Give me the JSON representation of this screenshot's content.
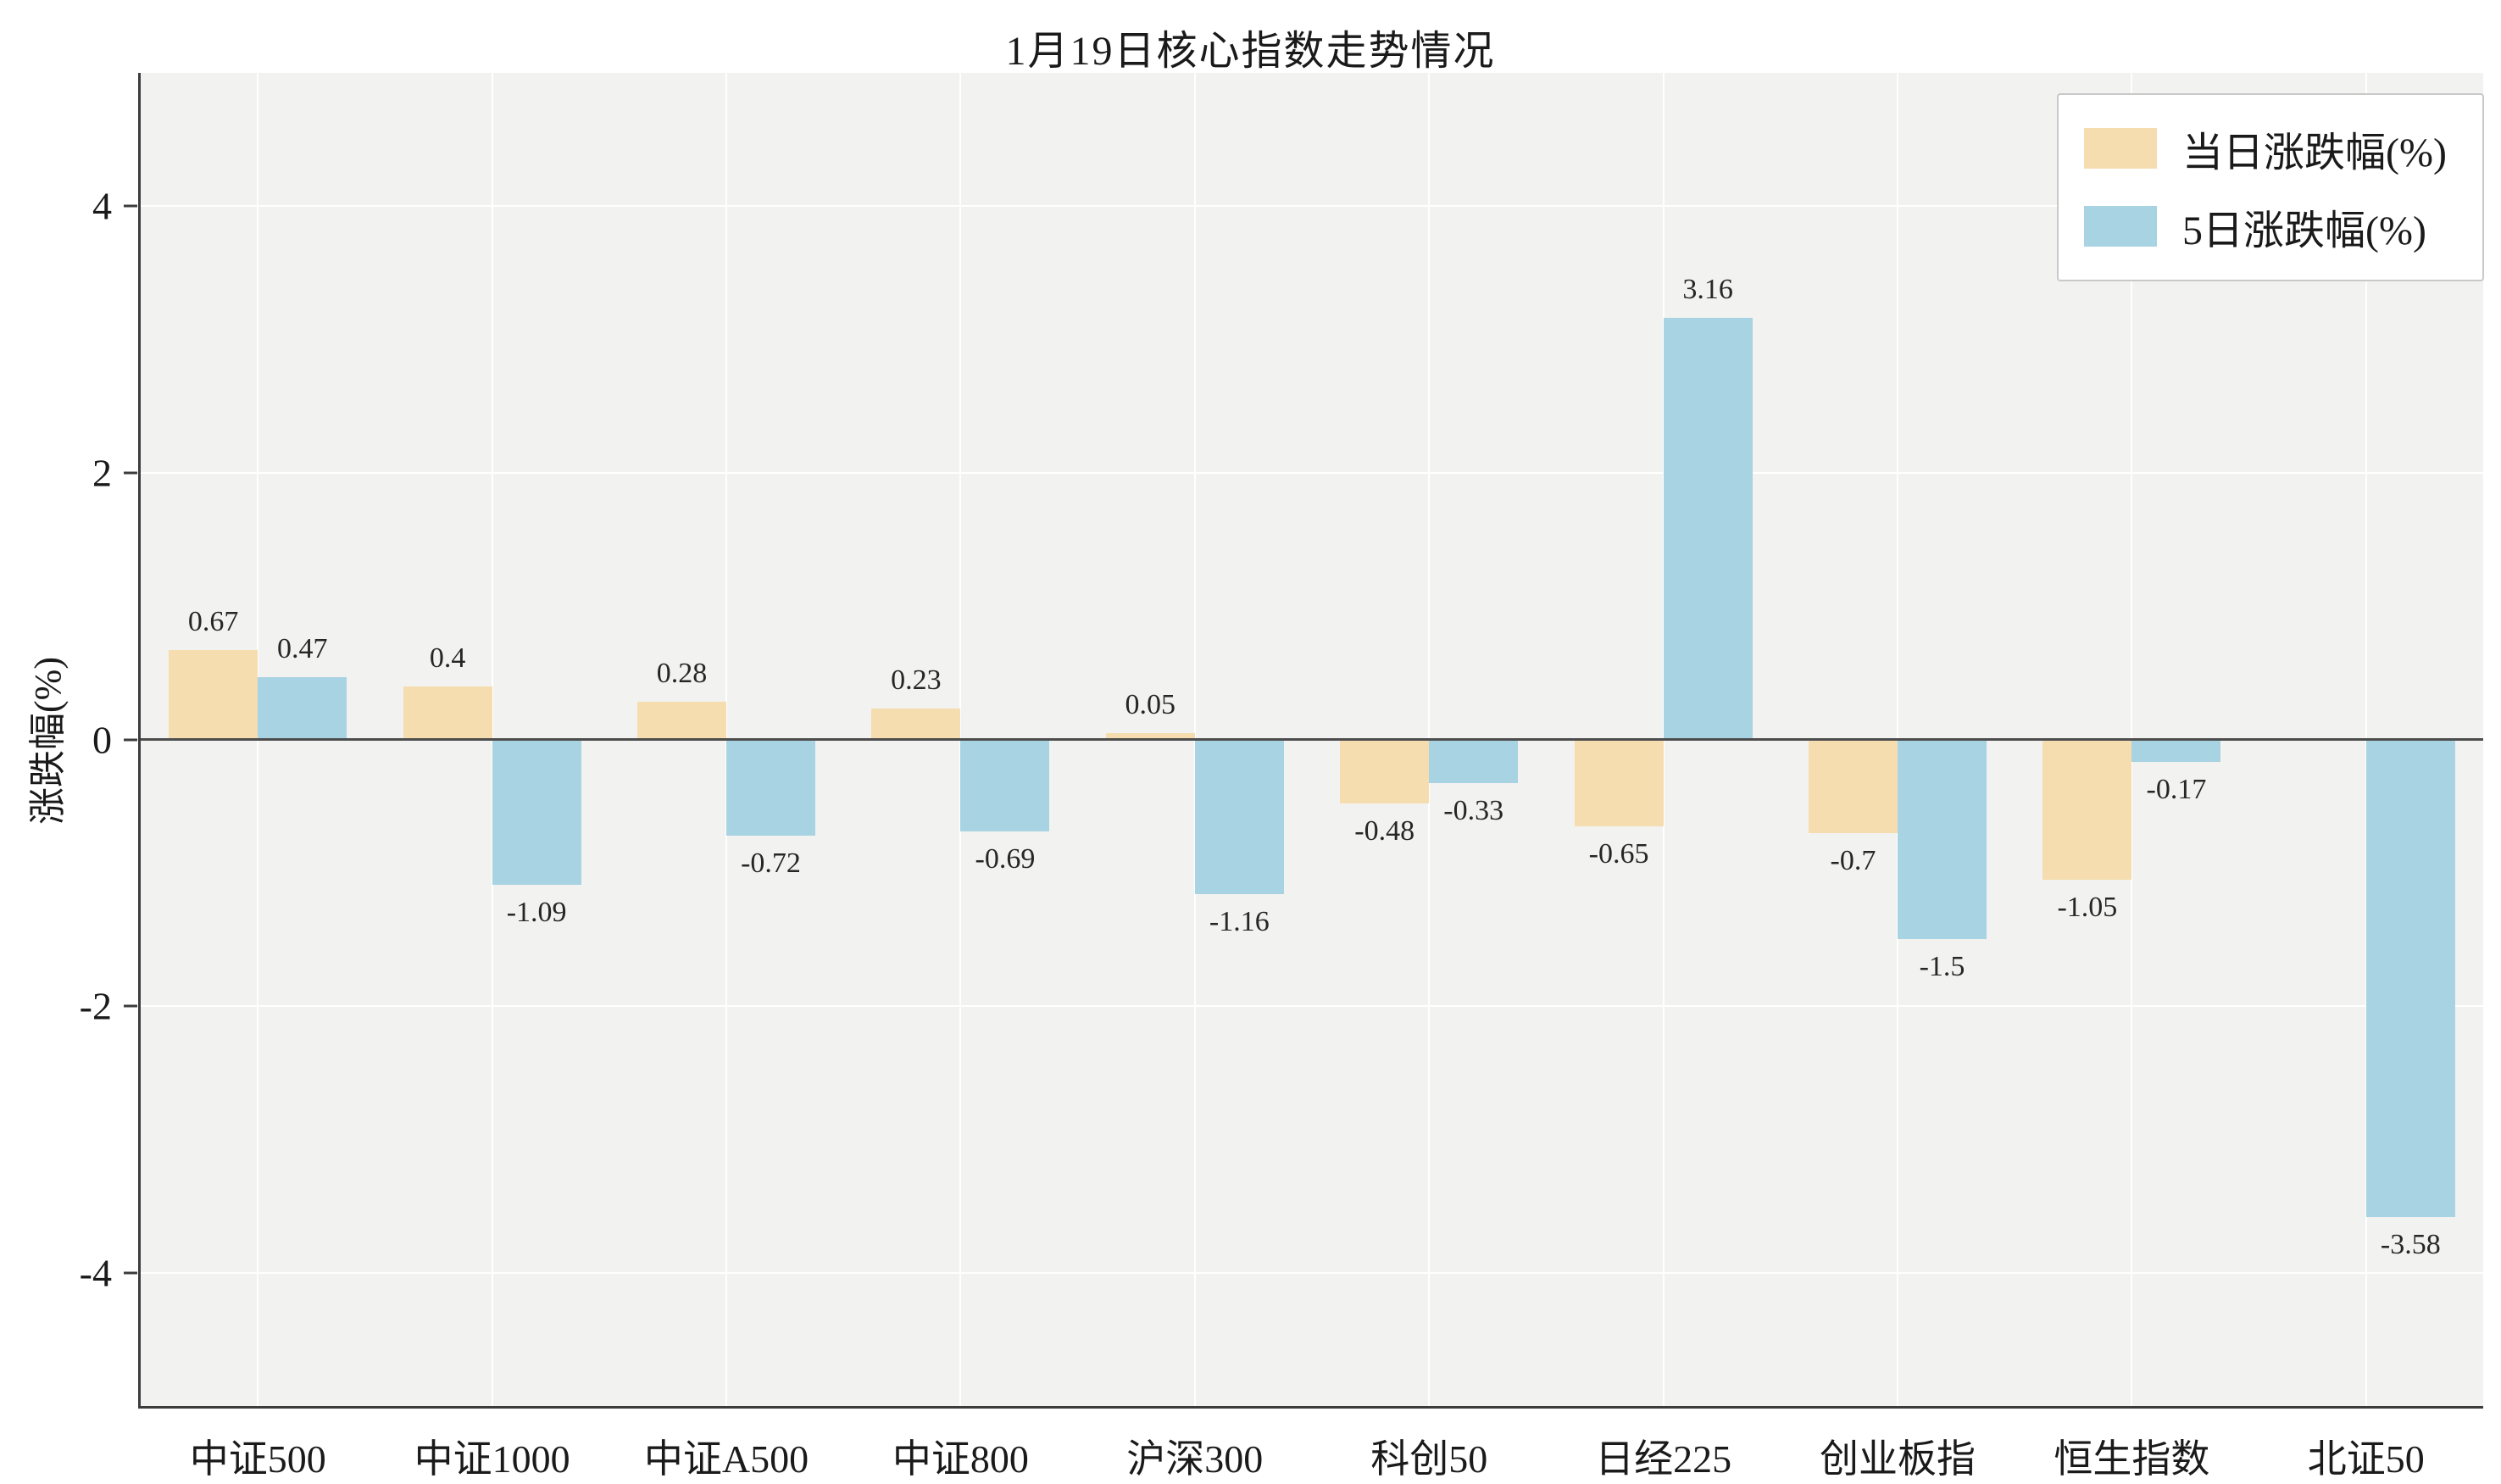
{
  "chart_data": {
    "type": "bar",
    "title": "1月19日核心指数走势情况",
    "xlabel": "",
    "ylabel": "涨跌幅(%)",
    "categories": [
      "中证500",
      "中证1000",
      "中证A500",
      "中证800",
      "沪深300",
      "科创50",
      "日经225",
      "创业板指",
      "恒生指数",
      "北证50"
    ],
    "series": [
      {
        "name": "当日涨跌幅(%)",
        "color": "#f5ddb0",
        "values": [
          0.67,
          0.4,
          0.28,
          0.23,
          0.05,
          -0.48,
          -0.65,
          -0.7,
          -1.05,
          null
        ]
      },
      {
        "name": "5日涨跌幅(%)",
        "color": "#a8d3e2",
        "values": [
          0.47,
          -1.09,
          -0.72,
          -0.69,
          -1.16,
          -0.33,
          3.16,
          -1.5,
          -0.17,
          -3.58
        ]
      }
    ],
    "ylim": [
      -5,
      5
    ],
    "yticks": [
      4,
      2,
      0,
      -2,
      -4
    ],
    "grid": true,
    "legend_position": "upper right",
    "colors": {
      "daily": "#f5ddb0",
      "five_day": "#a8d3e2",
      "zero_line": "#4d4d4d",
      "plot_bg": "#f2f2f0"
    }
  }
}
